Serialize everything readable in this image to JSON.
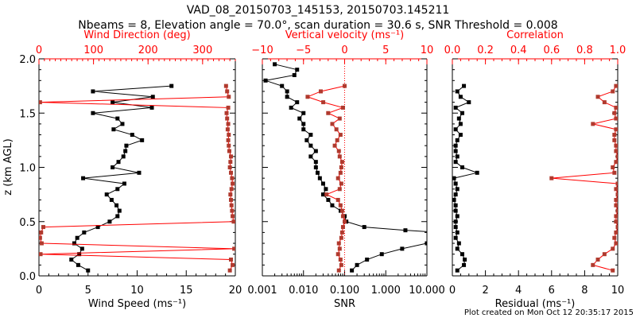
{
  "title": "VAD_08_20150703_145153, 20150703.145211",
  "subtitle": "Nbeams = 8, Elevation angle = 70.0°, scan duration = 30.6 s, SNR Threshold = 0.008",
  "footer": "Plot created on Mon Oct 12 20:35:17 2015",
  "colors": {
    "primary": "#000000",
    "secondary_axis": "#ff0000",
    "secondary_marker": "#b03a2e"
  },
  "chart_data": [
    {
      "type": "line",
      "ylabel": "z (km AGL)",
      "ylim": [
        0,
        2
      ],
      "yticks": [
        "0.0",
        "0.5",
        "1.0",
        "1.5",
        "2.0"
      ],
      "xlabel": "Wind Speed (ms⁻¹)",
      "xlim": [
        0,
        20
      ],
      "xticks": [
        "0",
        "5",
        "10",
        "15",
        "20"
      ],
      "x2label": "Wind Direction (deg)",
      "x2lim": [
        0,
        360
      ],
      "x2ticks": [
        "0",
        "100",
        "200",
        "300"
      ],
      "z": [
        0.05,
        0.1,
        0.15,
        0.2,
        0.25,
        0.3,
        0.35,
        0.4,
        0.45,
        0.5,
        0.55,
        0.6,
        0.65,
        0.7,
        0.75,
        0.8,
        0.85,
        0.9,
        0.95,
        1.0,
        1.05,
        1.1,
        1.15,
        1.2,
        1.25,
        1.3,
        1.35,
        1.4,
        1.45,
        1.5,
        1.55,
        1.6,
        1.65,
        1.7,
        1.75
      ],
      "series": [
        {
          "name": "Wind Speed",
          "axis": "bottom",
          "values": [
            5.0,
            4.0,
            3.3,
            4.1,
            4.4,
            3.6,
            3.9,
            4.6,
            6.0,
            7.2,
            8.0,
            8.2,
            7.9,
            7.4,
            6.9,
            8.0,
            8.7,
            4.5,
            10.2,
            7.5,
            8.1,
            8.6,
            8.8,
            8.9,
            10.5,
            9.5,
            7.6,
            8.5,
            8.0,
            5.5,
            11.5,
            7.5,
            11.6,
            5.5,
            13.5
          ]
        },
        {
          "name": "Wind Direction",
          "axis": "top",
          "values": [
            350,
            355,
            352,
            3,
            358,
            5,
            2,
            4,
            8,
            357,
            355,
            354,
            353,
            352,
            351,
            353,
            355,
            354,
            352,
            350,
            351,
            352,
            349,
            348,
            347,
            348,
            346,
            347,
            345,
            344,
            347,
            2,
            348,
            345,
            343
          ]
        }
      ]
    },
    {
      "type": "line",
      "ylim": [
        0,
        2
      ],
      "xlabel": "SNR",
      "xlim": [
        0.001,
        10
      ],
      "xscale": "log",
      "xticks": [
        "0.001",
        "0.010",
        "0.100",
        "1.000",
        "10.000"
      ],
      "x2label": "Vertical velocity (ms⁻¹)",
      "x2lim": [
        -10,
        10
      ],
      "x2ticks": [
        "−10",
        "−5",
        "0",
        "5",
        "10"
      ],
      "series": [
        {
          "name": "SNR",
          "axis": "bottom",
          "z": [
            0.05,
            0.1,
            0.15,
            0.2,
            0.25,
            0.3,
            0.33,
            0.4,
            0.42,
            0.45,
            0.5,
            0.55,
            0.6,
            0.65,
            0.7,
            0.75,
            0.8,
            0.85,
            0.9,
            0.95,
            1.0,
            1.05,
            1.1,
            1.15,
            1.2,
            1.25,
            1.3,
            1.35,
            1.4,
            1.45,
            1.5,
            1.55,
            1.6,
            1.65,
            1.7,
            1.75,
            1.8,
            1.85,
            1.9,
            1.95
          ],
          "values": [
            0.15,
            0.2,
            0.35,
            0.8,
            2.5,
            10,
            20,
            20,
            3,
            0.3,
            0.11,
            0.1,
            0.08,
            0.05,
            0.04,
            0.03,
            0.035,
            0.03,
            0.025,
            0.022,
            0.02,
            0.02,
            0.015,
            0.02,
            0.015,
            0.012,
            0.015,
            0.01,
            0.01,
            0.008,
            0.01,
            0.005,
            0.007,
            0.004,
            0.004,
            0.003,
            0.0012,
            0.006,
            0.007,
            0.002
          ]
        },
        {
          "name": "Vertical velocity",
          "axis": "top",
          "z": [
            0.05,
            0.1,
            0.15,
            0.2,
            0.25,
            0.3,
            0.35,
            0.4,
            0.45,
            0.5,
            0.55,
            0.6,
            0.65,
            0.7,
            0.75,
            0.8,
            0.85,
            0.9,
            0.95,
            1.0,
            1.05,
            1.1,
            1.15,
            1.2,
            1.25,
            1.3,
            1.35,
            1.4,
            1.45,
            1.5,
            1.55,
            1.6,
            1.65,
            1.7,
            1.75
          ],
          "values": [
            -0.7,
            -0.4,
            -0.5,
            -0.8,
            -0.6,
            -0.7,
            -0.4,
            -0.3,
            -0.2,
            0,
            -0.2,
            -0.3,
            -0.5,
            -0.8,
            -2.2,
            -0.6,
            -0.4,
            -0.8,
            -0.5,
            -0.4,
            -0.3,
            -0.6,
            -0.7,
            -1.2,
            -0.9,
            -0.5,
            -1.0,
            -1.5,
            -0.6,
            -2.0,
            -0.2,
            -2.6,
            -4.5,
            -2.9,
            0
          ]
        }
      ]
    },
    {
      "type": "line",
      "ylim": [
        0,
        2
      ],
      "xlabel": "Residual (ms⁻¹)",
      "xlim": [
        0,
        10
      ],
      "xticks": [
        "0",
        "2",
        "4",
        "6",
        "8",
        "10"
      ],
      "x2label": "Correlation",
      "x2lim": [
        0,
        1
      ],
      "x2ticks": [
        "0.0",
        "0.2",
        "0.4",
        "0.6",
        "0.8",
        "1.0"
      ],
      "z": [
        0.05,
        0.1,
        0.15,
        0.2,
        0.25,
        0.3,
        0.35,
        0.4,
        0.45,
        0.5,
        0.55,
        0.6,
        0.65,
        0.7,
        0.75,
        0.8,
        0.85,
        0.9,
        0.95,
        1.0,
        1.05,
        1.1,
        1.15,
        1.2,
        1.25,
        1.3,
        1.35,
        1.4,
        1.45,
        1.5,
        1.55,
        1.6,
        1.65,
        1.7,
        1.75
      ],
      "series": [
        {
          "name": "Residual",
          "axis": "bottom",
          "values": [
            0.3,
            0.7,
            0.75,
            0.6,
            0.3,
            0.4,
            0.2,
            0.3,
            0.2,
            0.2,
            0.3,
            0.2,
            0.2,
            0.1,
            0.2,
            0.3,
            0.2,
            0.1,
            1.5,
            0.6,
            0.2,
            0.3,
            0.2,
            0.2,
            0.3,
            0.5,
            0.2,
            0.5,
            0.4,
            0.6,
            0.2,
            1.0,
            0.5,
            0.3,
            0.7
          ]
        },
        {
          "name": "Correlation",
          "axis": "top",
          "values": [
            0.97,
            0.85,
            0.88,
            0.92,
            0.97,
            0.99,
            0.98,
            0.99,
            1.0,
            0.99,
            0.99,
            1.0,
            0.99,
            0.99,
            1.0,
            0.99,
            1.0,
            0.6,
            0.98,
            0.97,
            0.99,
            1.0,
            0.99,
            0.99,
            0.98,
            0.98,
            0.99,
            0.85,
            0.99,
            0.98,
            0.99,
            0.92,
            0.88,
            0.97,
            0.99
          ]
        }
      ]
    }
  ]
}
